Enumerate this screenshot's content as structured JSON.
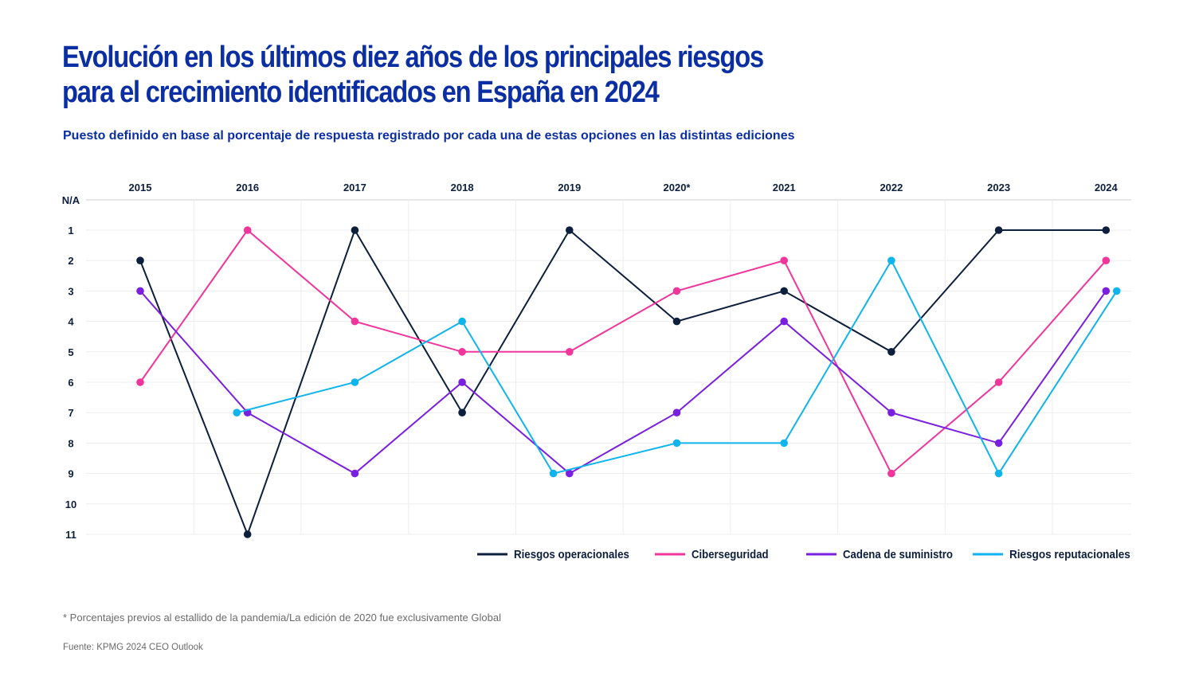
{
  "header": {
    "title_line1": "Evolución en los últimos diez años de los principales riesgos",
    "title_line2": "para el crecimiento identificados en España en 2024",
    "subtitle": "Puesto definido en base al porcentaje de respuesta registrado por cada una de estas opciones en las distintas ediciones"
  },
  "footer": {
    "footnote": "* Porcentajes previos al estallido de la pandemia/La edición de 2020 fue exclusivamente Global",
    "source": "Fuente: KPMG 2024 CEO Outlook"
  },
  "chart_data": {
    "type": "line",
    "categories": [
      "2015",
      "2016",
      "2017",
      "2018",
      "2019",
      "2020*",
      "2021",
      "2022",
      "2023",
      "2024"
    ],
    "y_tick_labels": [
      "N/A",
      "1",
      "2",
      "3",
      "4",
      "5",
      "6",
      "7",
      "8",
      "9",
      "10",
      "11"
    ],
    "y_axis": "rank (1 at top, 11 at bottom)",
    "ylim": [
      0,
      11
    ],
    "grid": true,
    "legend_position": "bottom-right",
    "series": [
      {
        "name": "Riesgos operacionales",
        "color": "#0d1f3c",
        "points": [
          [
            0,
            2
          ],
          [
            1,
            11
          ],
          [
            2,
            1
          ],
          [
            3,
            7
          ],
          [
            4,
            1
          ],
          [
            5,
            4
          ],
          [
            6,
            3
          ],
          [
            7,
            5
          ],
          [
            8,
            1
          ],
          [
            9,
            1
          ]
        ]
      },
      {
        "name": "Ciberseguridad",
        "color": "#f0359b",
        "points": [
          [
            0,
            6
          ],
          [
            1,
            1
          ],
          [
            2,
            4
          ],
          [
            3,
            5
          ],
          [
            4,
            5
          ],
          [
            5,
            3
          ],
          [
            6,
            2
          ],
          [
            7,
            9
          ],
          [
            8,
            6
          ],
          [
            9,
            2
          ]
        ]
      },
      {
        "name": "Cadena de suministro",
        "color": "#7a1fe0",
        "points": [
          [
            0,
            3
          ],
          [
            1,
            7
          ],
          [
            2,
            9
          ],
          [
            3,
            6
          ],
          [
            4,
            9
          ],
          [
            5,
            7
          ],
          [
            6,
            4
          ],
          [
            7,
            7
          ],
          [
            8,
            8
          ],
          [
            9,
            3
          ]
        ]
      },
      {
        "name": "Riesgos reputacionales",
        "color": "#10b4ec",
        "points": [
          [
            0.9,
            7
          ],
          [
            2,
            6
          ],
          [
            3,
            4
          ],
          [
            3.85,
            9
          ],
          [
            5,
            8
          ],
          [
            6,
            8
          ],
          [
            7,
            2
          ],
          [
            8,
            9
          ],
          [
            9.1,
            3
          ]
        ]
      }
    ]
  }
}
